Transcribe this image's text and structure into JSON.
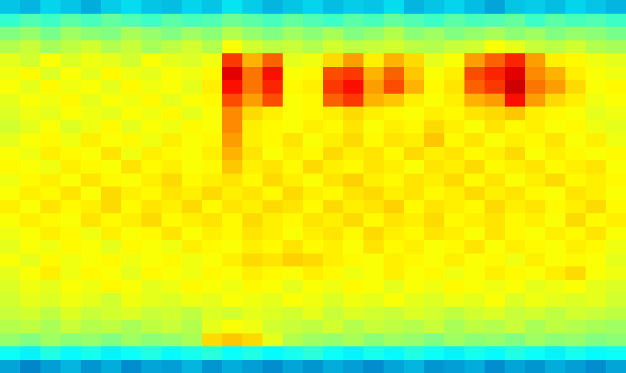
{
  "chart_data": {
    "type": "heatmap",
    "tick_labels": false,
    "color": "Jet",
    "zlim": [
      0,
      1
    ],
    "cells": [
      [
        0.3,
        0.28,
        0.32,
        0.3,
        0.27,
        0.31,
        0.33,
        0.3,
        0.29,
        0.32,
        0.3,
        0.34,
        0.31,
        0.28,
        0.3,
        0.32,
        0.29,
        0.31,
        0.3,
        0.33,
        0.28,
        0.3,
        0.32,
        0.29,
        0.26,
        0.3,
        0.31,
        0.29,
        0.32,
        0.3,
        0.28
      ],
      [
        0.42,
        0.45,
        0.43,
        0.46,
        0.44,
        0.47,
        0.45,
        0.43,
        0.46,
        0.44,
        0.45,
        0.48,
        0.46,
        0.44,
        0.47,
        0.45,
        0.43,
        0.46,
        0.44,
        0.47,
        0.45,
        0.43,
        0.46,
        0.44,
        0.45,
        0.47,
        0.43,
        0.46,
        0.44,
        0.45,
        0.43
      ],
      [
        0.5,
        0.52,
        0.49,
        0.53,
        0.51,
        0.5,
        0.54,
        0.52,
        0.5,
        0.53,
        0.51,
        0.55,
        0.52,
        0.5,
        0.53,
        0.51,
        0.54,
        0.5,
        0.52,
        0.55,
        0.51,
        0.53,
        0.5,
        0.52,
        0.54,
        0.51,
        0.53,
        0.5,
        0.52,
        0.51,
        0.49
      ],
      [
        0.55,
        0.57,
        0.54,
        0.56,
        0.58,
        0.55,
        0.57,
        0.54,
        0.56,
        0.58,
        0.55,
        0.62,
        0.58,
        0.56,
        0.57,
        0.55,
        0.58,
        0.56,
        0.57,
        0.58,
        0.56,
        0.55,
        0.57,
        0.58,
        0.62,
        0.6,
        0.57,
        0.56,
        0.58,
        0.55,
        0.54
      ],
      [
        0.6,
        0.58,
        0.62,
        0.59,
        0.61,
        0.6,
        0.58,
        0.62,
        0.6,
        0.59,
        0.61,
        0.82,
        0.7,
        0.78,
        0.6,
        0.61,
        0.66,
        0.72,
        0.64,
        0.7,
        0.66,
        0.6,
        0.62,
        0.72,
        0.78,
        0.84,
        0.72,
        0.64,
        0.63,
        0.61,
        0.6
      ],
      [
        0.61,
        0.63,
        0.59,
        0.62,
        0.6,
        0.63,
        0.61,
        0.6,
        0.62,
        0.61,
        0.63,
        0.9,
        0.76,
        0.86,
        0.62,
        0.63,
        0.8,
        0.82,
        0.7,
        0.78,
        0.68,
        0.62,
        0.64,
        0.8,
        0.84,
        0.9,
        0.74,
        0.7,
        0.64,
        0.62,
        0.61
      ],
      [
        0.62,
        0.6,
        0.63,
        0.61,
        0.62,
        0.6,
        0.63,
        0.61,
        0.62,
        0.6,
        0.64,
        0.86,
        0.76,
        0.84,
        0.63,
        0.64,
        0.82,
        0.86,
        0.72,
        0.8,
        0.7,
        0.63,
        0.65,
        0.78,
        0.82,
        0.92,
        0.76,
        0.72,
        0.66,
        0.62,
        0.63
      ],
      [
        0.6,
        0.62,
        0.61,
        0.63,
        0.6,
        0.62,
        0.61,
        0.63,
        0.6,
        0.62,
        0.63,
        0.8,
        0.72,
        0.8,
        0.62,
        0.63,
        0.78,
        0.82,
        0.7,
        0.68,
        0.64,
        0.62,
        0.64,
        0.7,
        0.72,
        0.86,
        0.72,
        0.66,
        0.64,
        0.61,
        0.62
      ],
      [
        0.59,
        0.61,
        0.6,
        0.62,
        0.61,
        0.6,
        0.62,
        0.61,
        0.63,
        0.6,
        0.62,
        0.74,
        0.66,
        0.64,
        0.62,
        0.63,
        0.64,
        0.66,
        0.64,
        0.63,
        0.62,
        0.64,
        0.63,
        0.65,
        0.66,
        0.68,
        0.64,
        0.63,
        0.62,
        0.6,
        0.61
      ],
      [
        0.58,
        0.6,
        0.62,
        0.59,
        0.61,
        0.63,
        0.6,
        0.62,
        0.61,
        0.63,
        0.62,
        0.74,
        0.64,
        0.63,
        0.62,
        0.64,
        0.63,
        0.65,
        0.62,
        0.64,
        0.63,
        0.66,
        0.64,
        0.62,
        0.65,
        0.63,
        0.64,
        0.62,
        0.63,
        0.61,
        0.6
      ],
      [
        0.6,
        0.62,
        0.63,
        0.61,
        0.64,
        0.62,
        0.63,
        0.61,
        0.64,
        0.62,
        0.63,
        0.72,
        0.64,
        0.63,
        0.65,
        0.62,
        0.64,
        0.66,
        0.63,
        0.65,
        0.64,
        0.68,
        0.63,
        0.65,
        0.62,
        0.64,
        0.63,
        0.65,
        0.62,
        0.64,
        0.61
      ],
      [
        0.62,
        0.61,
        0.64,
        0.63,
        0.62,
        0.65,
        0.61,
        0.64,
        0.63,
        0.62,
        0.64,
        0.7,
        0.65,
        0.62,
        0.64,
        0.63,
        0.66,
        0.64,
        0.65,
        0.63,
        0.66,
        0.64,
        0.65,
        0.63,
        0.64,
        0.66,
        0.62,
        0.64,
        0.63,
        0.62,
        0.63
      ],
      [
        0.63,
        0.62,
        0.61,
        0.64,
        0.63,
        0.62,
        0.65,
        0.63,
        0.64,
        0.62,
        0.63,
        0.68,
        0.64,
        0.65,
        0.63,
        0.66,
        0.64,
        0.63,
        0.65,
        0.64,
        0.62,
        0.65,
        0.64,
        0.66,
        0.63,
        0.64,
        0.65,
        0.63,
        0.64,
        0.65,
        0.62
      ],
      [
        0.61,
        0.63,
        0.64,
        0.62,
        0.65,
        0.63,
        0.62,
        0.64,
        0.66,
        0.63,
        0.64,
        0.65,
        0.63,
        0.66,
        0.64,
        0.62,
        0.65,
        0.67,
        0.64,
        0.63,
        0.65,
        0.64,
        0.66,
        0.63,
        0.65,
        0.62,
        0.64,
        0.66,
        0.63,
        0.64,
        0.63
      ],
      [
        0.62,
        0.64,
        0.63,
        0.65,
        0.62,
        0.66,
        0.64,
        0.63,
        0.65,
        0.64,
        0.66,
        0.64,
        0.65,
        0.63,
        0.66,
        0.64,
        0.63,
        0.65,
        0.66,
        0.64,
        0.65,
        0.63,
        0.64,
        0.66,
        0.64,
        0.65,
        0.63,
        0.62,
        0.65,
        0.64,
        0.62
      ],
      [
        0.64,
        0.62,
        0.65,
        0.63,
        0.64,
        0.66,
        0.63,
        0.65,
        0.64,
        0.66,
        0.63,
        0.65,
        0.64,
        0.66,
        0.65,
        0.63,
        0.66,
        0.64,
        0.65,
        0.67,
        0.63,
        0.65,
        0.64,
        0.63,
        0.66,
        0.64,
        0.65,
        0.63,
        0.64,
        0.66,
        0.63
      ],
      [
        0.62,
        0.64,
        0.63,
        0.62,
        0.65,
        0.63,
        0.64,
        0.66,
        0.63,
        0.64,
        0.65,
        0.63,
        0.66,
        0.64,
        0.63,
        0.65,
        0.64,
        0.66,
        0.63,
        0.65,
        0.64,
        0.66,
        0.63,
        0.64,
        0.65,
        0.63,
        0.64,
        0.62,
        0.66,
        0.63,
        0.64
      ],
      [
        0.61,
        0.62,
        0.64,
        0.63,
        0.61,
        0.64,
        0.62,
        0.63,
        0.65,
        0.62,
        0.64,
        0.63,
        0.65,
        0.64,
        0.62,
        0.64,
        0.65,
        0.63,
        0.66,
        0.64,
        0.63,
        0.65,
        0.64,
        0.62,
        0.65,
        0.63,
        0.62,
        0.64,
        0.63,
        0.65,
        0.62
      ],
      [
        0.6,
        0.62,
        0.61,
        0.63,
        0.62,
        0.6,
        0.63,
        0.62,
        0.61,
        0.64,
        0.63,
        0.62,
        0.64,
        0.63,
        0.65,
        0.63,
        0.64,
        0.62,
        0.65,
        0.63,
        0.64,
        0.62,
        0.63,
        0.65,
        0.62,
        0.64,
        0.63,
        0.62,
        0.64,
        0.63,
        0.61
      ],
      [
        0.62,
        0.6,
        0.63,
        0.61,
        0.62,
        0.63,
        0.61,
        0.62,
        0.63,
        0.61,
        0.62,
        0.64,
        0.66,
        0.65,
        0.67,
        0.66,
        0.64,
        0.63,
        0.62,
        0.64,
        0.63,
        0.62,
        0.64,
        0.62,
        0.63,
        0.61,
        0.64,
        0.62,
        0.63,
        0.62,
        0.6
      ],
      [
        0.6,
        0.62,
        0.64,
        0.61,
        0.63,
        0.62,
        0.6,
        0.63,
        0.62,
        0.61,
        0.63,
        0.62,
        0.64,
        0.63,
        0.62,
        0.64,
        0.63,
        0.61,
        0.62,
        0.64,
        0.62,
        0.63,
        0.61,
        0.62,
        0.64,
        0.63,
        0.62,
        0.64,
        0.66,
        0.62,
        0.61
      ],
      [
        0.59,
        0.61,
        0.6,
        0.62,
        0.61,
        0.63,
        0.62,
        0.6,
        0.61,
        0.63,
        0.62,
        0.61,
        0.63,
        0.62,
        0.6,
        0.62,
        0.61,
        0.63,
        0.62,
        0.6,
        0.62,
        0.61,
        0.63,
        0.62,
        0.61,
        0.62,
        0.6,
        0.61,
        0.62,
        0.6,
        0.59
      ],
      [
        0.58,
        0.6,
        0.59,
        0.61,
        0.6,
        0.58,
        0.61,
        0.6,
        0.59,
        0.61,
        0.6,
        0.62,
        0.61,
        0.6,
        0.62,
        0.61,
        0.59,
        0.61,
        0.6,
        0.62,
        0.6,
        0.59,
        0.61,
        0.6,
        0.62,
        0.59,
        0.61,
        0.6,
        0.59,
        0.6,
        0.58
      ],
      [
        0.57,
        0.58,
        0.56,
        0.59,
        0.57,
        0.58,
        0.59,
        0.57,
        0.58,
        0.56,
        0.59,
        0.58,
        0.6,
        0.59,
        0.58,
        0.6,
        0.57,
        0.59,
        0.58,
        0.57,
        0.59,
        0.58,
        0.56,
        0.58,
        0.59,
        0.57,
        0.58,
        0.56,
        0.58,
        0.57,
        0.56
      ],
      [
        0.55,
        0.56,
        0.54,
        0.57,
        0.55,
        0.56,
        0.54,
        0.56,
        0.57,
        0.55,
        0.6,
        0.62,
        0.61,
        0.58,
        0.57,
        0.56,
        0.58,
        0.55,
        0.57,
        0.56,
        0.55,
        0.57,
        0.54,
        0.56,
        0.55,
        0.57,
        0.54,
        0.56,
        0.55,
        0.54,
        0.53
      ],
      [
        0.52,
        0.5,
        0.53,
        0.51,
        0.52,
        0.5,
        0.53,
        0.51,
        0.52,
        0.54,
        0.66,
        0.68,
        0.66,
        0.6,
        0.55,
        0.53,
        0.52,
        0.54,
        0.51,
        0.53,
        0.52,
        0.5,
        0.53,
        0.51,
        0.52,
        0.5,
        0.53,
        0.51,
        0.52,
        0.5,
        0.51
      ],
      [
        0.38,
        0.36,
        0.4,
        0.37,
        0.39,
        0.36,
        0.38,
        0.4,
        0.37,
        0.39,
        0.41,
        0.38,
        0.4,
        0.37,
        0.39,
        0.41,
        0.38,
        0.36,
        0.39,
        0.37,
        0.4,
        0.38,
        0.36,
        0.39,
        0.37,
        0.4,
        0.38,
        0.36,
        0.39,
        0.37,
        0.38
      ],
      [
        0.26,
        0.22,
        0.25,
        0.28,
        0.24,
        0.27,
        0.23,
        0.26,
        0.25,
        0.28,
        0.24,
        0.27,
        0.25,
        0.23,
        0.26,
        0.24,
        0.27,
        0.25,
        0.23,
        0.26,
        0.28,
        0.24,
        0.25,
        0.27,
        0.23,
        0.26,
        0.24,
        0.27,
        0.25,
        0.23,
        0.26
      ]
    ]
  }
}
